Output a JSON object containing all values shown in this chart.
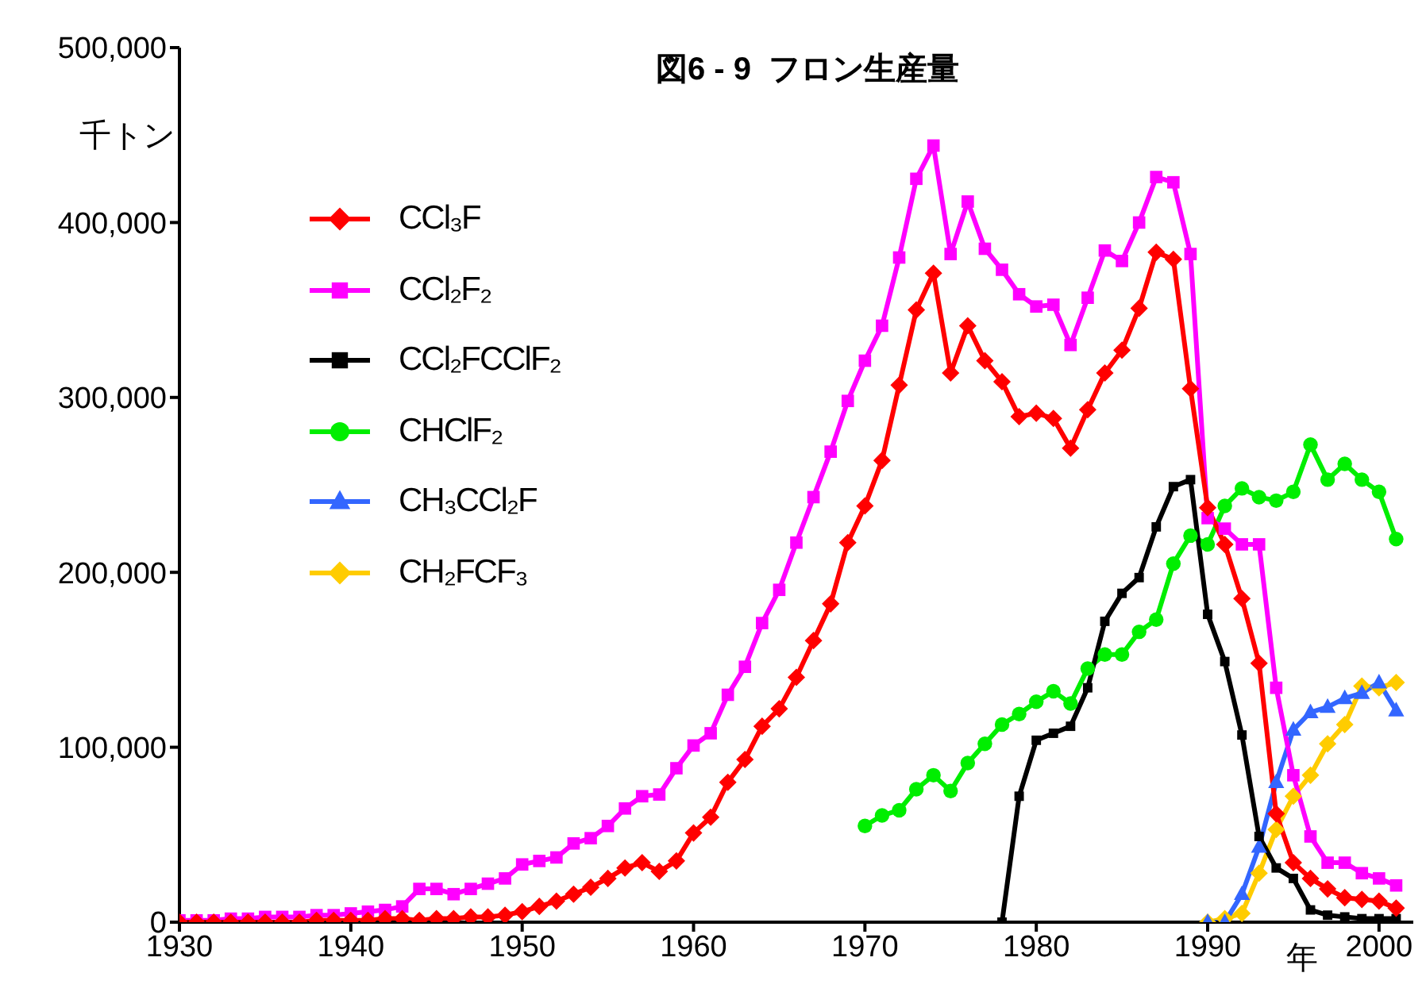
{
  "chart_data": {
    "type": "line",
    "title": "図6 - 9  フロン生産量",
    "xlabel": "年",
    "ylabel": "千トン",
    "x": [
      1930,
      1931,
      1932,
      1933,
      1934,
      1935,
      1936,
      1937,
      1938,
      1939,
      1940,
      1941,
      1942,
      1943,
      1944,
      1945,
      1946,
      1947,
      1948,
      1949,
      1950,
      1951,
      1952,
      1953,
      1954,
      1955,
      1956,
      1957,
      1958,
      1959,
      1960,
      1961,
      1962,
      1963,
      1964,
      1965,
      1966,
      1967,
      1968,
      1969,
      1970,
      1971,
      1972,
      1973,
      1974,
      1975,
      1976,
      1977,
      1978,
      1979,
      1980,
      1981,
      1982,
      1983,
      1984,
      1985,
      1986,
      1987,
      1988,
      1989,
      1990,
      1991,
      1992,
      1993,
      1994,
      1995,
      1996,
      1997,
      1998,
      1999,
      2000,
      2001
    ],
    "xlim": [
      1930,
      2002
    ],
    "xticks": [
      1930,
      1940,
      1950,
      1960,
      1970,
      1980,
      1990,
      2000
    ],
    "ylim": [
      0,
      500000
    ],
    "yticks": [
      0,
      {
        "value": 100000,
        "label": "100,000"
      },
      {
        "value": 200000,
        "label": "200,000"
      },
      {
        "value": 300000,
        "label": "300,000"
      },
      {
        "value": 400000,
        "label": "400,000"
      },
      {
        "value": 500000,
        "label": "500,000"
      }
    ],
    "grid": false,
    "legend": "top left",
    "line_style": "solid",
    "series": [
      {
        "name": "CCl₃F",
        "color": "#ff0000",
        "marker": "diamond",
        "values": [
          0,
          0,
          0,
          0,
          0,
          0,
          0,
          0,
          1000,
          1000,
          1000,
          1000,
          2000,
          2000,
          1000,
          2000,
          2000,
          3000,
          3000,
          4000,
          6000,
          9000,
          12000,
          16000,
          20000,
          25000,
          31000,
          34000,
          29000,
          35000,
          51000,
          60000,
          80000,
          93000,
          112000,
          122000,
          140000,
          161000,
          182000,
          217000,
          238000,
          264000,
          307000,
          350000,
          371000,
          314000,
          341000,
          321000,
          309000,
          289000,
          291000,
          288000,
          271000,
          293000,
          314000,
          327000,
          351000,
          383000,
          379000,
          305000,
          237000,
          216000,
          185000,
          148000,
          62000,
          34000,
          25000,
          19000,
          14000,
          13000,
          12000,
          8000
        ]
      },
      {
        "name": "CCl₂F₂",
        "color": "#ff00ff",
        "marker": "square",
        "values": [
          1000,
          1000,
          1000,
          2000,
          2000,
          3000,
          3000,
          3000,
          4000,
          4000,
          5000,
          6000,
          7000,
          9000,
          19000,
          19000,
          16000,
          19000,
          22000,
          25000,
          33000,
          35000,
          37000,
          45000,
          48000,
          55000,
          65000,
          72000,
          73000,
          88000,
          101000,
          108000,
          130000,
          146000,
          171000,
          190000,
          217000,
          243000,
          269000,
          298000,
          321000,
          341000,
          380000,
          425000,
          444000,
          382000,
          412000,
          385000,
          373000,
          359000,
          352000,
          353000,
          330000,
          357000,
          384000,
          378000,
          400000,
          426000,
          423000,
          382000,
          231000,
          225000,
          216000,
          216000,
          134000,
          84000,
          49000,
          34000,
          34000,
          28000,
          25000,
          21000
        ]
      },
      {
        "name": "CCl₂FCClF₂",
        "color": "#000000",
        "marker": "square",
        "x": [
          1978,
          1979,
          1980,
          1981,
          1982,
          1983,
          1984,
          1985,
          1986,
          1987,
          1988,
          1989,
          1990,
          1991,
          1992,
          1993,
          1994,
          1995,
          1996,
          1997,
          1998,
          1999,
          2000,
          2001
        ],
        "values": [
          0,
          72000,
          104000,
          108000,
          112000,
          134000,
          172000,
          188000,
          197000,
          226000,
          249000,
          253000,
          176000,
          149000,
          107000,
          49000,
          31000,
          25000,
          7000,
          4000,
          3000,
          2000,
          2000,
          2000
        ]
      },
      {
        "name": "CHClF₂",
        "color": "#00ee00",
        "marker": "circle",
        "x": [
          1970,
          1971,
          1972,
          1973,
          1974,
          1975,
          1976,
          1977,
          1978,
          1979,
          1980,
          1981,
          1982,
          1983,
          1984,
          1985,
          1986,
          1987,
          1988,
          1989,
          1990,
          1991,
          1992,
          1993,
          1994,
          1995,
          1996,
          1997,
          1998,
          1999,
          2000,
          2001
        ],
        "values": [
          55000,
          61000,
          64000,
          76000,
          84000,
          75000,
          91000,
          102000,
          113000,
          119000,
          126000,
          132000,
          125000,
          145000,
          153000,
          153000,
          166000,
          173000,
          205000,
          221000,
          216000,
          238000,
          248000,
          243000,
          241000,
          246000,
          273000,
          253000,
          262000,
          253000,
          246000,
          219000
        ]
      },
      {
        "name": "CH₃CCl₂F",
        "color": "#3366ff",
        "marker": "triangle",
        "x": [
          1990,
          1991,
          1992,
          1993,
          1994,
          1995,
          1996,
          1997,
          1998,
          1999,
          2000,
          2001
        ],
        "values": [
          0,
          0,
          16000,
          43000,
          80000,
          110000,
          120000,
          123000,
          128000,
          131000,
          137000,
          121000
        ]
      },
      {
        "name": "CH₂FCF₃",
        "color": "#ffcc00",
        "marker": "diamond",
        "x": [
          1990,
          1991,
          1992,
          1993,
          1994,
          1995,
          1996,
          1997,
          1998,
          1999,
          2000,
          2001
        ],
        "values": [
          0,
          2000,
          5000,
          28000,
          53000,
          72000,
          84000,
          102000,
          113000,
          135000,
          134000,
          137000
        ]
      }
    ]
  }
}
